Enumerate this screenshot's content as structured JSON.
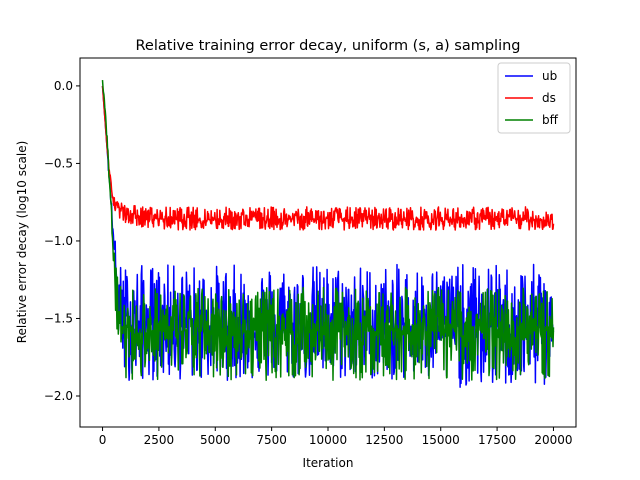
{
  "chart_data": {
    "type": "line",
    "title": "Relative training error decay, uniform (s, a) sampling",
    "xlabel": "Iteration",
    "ylabel": "Relative error decay (log10 scale)",
    "xlim": [
      -1000,
      21000
    ],
    "ylim": [
      -2.2,
      0.18
    ],
    "xticks": [
      0,
      2500,
      5000,
      7500,
      10000,
      12500,
      15000,
      17500,
      20000
    ],
    "xtick_labels": [
      "0",
      "2500",
      "5000",
      "7500",
      "10000",
      "12500",
      "15000",
      "17500",
      "20000"
    ],
    "yticks": [
      0.0,
      -0.5,
      -1.0,
      -1.5,
      -2.0
    ],
    "ytick_labels": [
      "0.0",
      "−0.5",
      "−1.0",
      "−1.5",
      "−2.0"
    ],
    "grid": false,
    "legend_position": "top-right",
    "series": [
      {
        "name": "ub",
        "color": "#0000ff",
        "x": [
          0,
          100,
          200,
          300,
          400,
          500,
          600,
          700,
          800,
          900,
          1000,
          1200,
          1500,
          2000,
          2500,
          3000,
          4000,
          5000,
          6000,
          7000,
          8000,
          9000,
          10000,
          11000,
          12000,
          13000,
          14000,
          15000,
          16000,
          17000,
          18000,
          19000,
          20000
        ],
        "values": [
          0.0,
          -0.2,
          -0.4,
          -0.6,
          -0.8,
          -1.0,
          -1.2,
          -1.35,
          -1.45,
          -1.5,
          -1.52,
          -1.53,
          -1.53,
          -1.54,
          -1.54,
          -1.55,
          -1.55,
          -1.55,
          -1.55,
          -1.55,
          -1.55,
          -1.55,
          -1.55,
          -1.55,
          -1.55,
          -1.55,
          -1.55,
          -1.55,
          -1.55,
          -1.55,
          -1.55,
          -1.55,
          -1.55
        ],
        "band_upper": [
          0.0,
          -0.2,
          -0.4,
          -0.55,
          -0.75,
          -0.9,
          -1.05,
          -1.1,
          -1.15,
          -1.15,
          -1.15,
          -1.15,
          -1.15,
          -1.15,
          -1.15,
          -1.15,
          -1.15,
          -1.15,
          -1.15,
          -1.15,
          -1.15,
          -1.15,
          -1.15,
          -1.15,
          -1.15,
          -1.15,
          -1.15,
          -1.15,
          -1.15,
          -1.15,
          -1.15,
          -1.15,
          -1.15
        ],
        "band_lower": [
          0.0,
          -0.2,
          -0.4,
          -0.65,
          -0.85,
          -1.1,
          -1.4,
          -1.65,
          -1.8,
          -1.85,
          -1.9,
          -1.9,
          -1.9,
          -1.9,
          -1.9,
          -1.9,
          -1.9,
          -1.9,
          -1.9,
          -1.9,
          -1.9,
          -1.9,
          -1.9,
          -1.9,
          -1.9,
          -1.9,
          -1.9,
          -1.95,
          -1.95,
          -1.95,
          -1.95,
          -1.95,
          -1.95
        ]
      },
      {
        "name": "ds",
        "color": "#ff0000",
        "x": [
          0,
          100,
          200,
          300,
          400,
          500,
          600,
          700,
          800,
          1000,
          1500,
          2000,
          3000,
          4000,
          5000,
          6000,
          7000,
          8000,
          9000,
          10000,
          11000,
          12000,
          13000,
          14000,
          15000,
          16000,
          17000,
          18000,
          19000,
          20000
        ],
        "values": [
          0.0,
          -0.2,
          -0.4,
          -0.55,
          -0.68,
          -0.74,
          -0.77,
          -0.79,
          -0.8,
          -0.82,
          -0.84,
          -0.85,
          -0.86,
          -0.86,
          -0.86,
          -0.86,
          -0.86,
          -0.86,
          -0.86,
          -0.86,
          -0.86,
          -0.86,
          -0.86,
          -0.86,
          -0.86,
          -0.86,
          -0.86,
          -0.86,
          -0.86,
          -0.87
        ],
        "band_upper": [
          0.0,
          -0.2,
          -0.4,
          -0.52,
          -0.64,
          -0.7,
          -0.72,
          -0.74,
          -0.75,
          -0.76,
          -0.77,
          -0.78,
          -0.78,
          -0.78,
          -0.78,
          -0.78,
          -0.78,
          -0.78,
          -0.78,
          -0.78,
          -0.78,
          -0.78,
          -0.78,
          -0.78,
          -0.78,
          -0.78,
          -0.78,
          -0.78,
          -0.78,
          -0.8
        ],
        "band_lower": [
          0.0,
          -0.2,
          -0.4,
          -0.58,
          -0.72,
          -0.78,
          -0.82,
          -0.84,
          -0.86,
          -0.88,
          -0.9,
          -0.92,
          -0.93,
          -0.93,
          -0.93,
          -0.93,
          -0.93,
          -0.93,
          -0.93,
          -0.93,
          -0.93,
          -0.93,
          -0.93,
          -0.93,
          -0.93,
          -0.93,
          -0.93,
          -0.93,
          -0.93,
          -0.93
        ]
      },
      {
        "name": "bff",
        "color": "#008000",
        "x": [
          0,
          100,
          200,
          300,
          400,
          500,
          600,
          700,
          800,
          1000,
          1500,
          2000,
          3000,
          4000,
          5000,
          6000,
          7000,
          8000,
          9000,
          10000,
          11000,
          12000,
          13000,
          14000,
          15000,
          16000,
          17000,
          18000,
          19000,
          20000
        ],
        "values": [
          0.05,
          -0.15,
          -0.35,
          -0.6,
          -0.85,
          -1.1,
          -1.35,
          -1.5,
          -1.55,
          -1.57,
          -1.58,
          -1.58,
          -1.58,
          -1.58,
          -1.58,
          -1.58,
          -1.58,
          -1.58,
          -1.58,
          -1.58,
          -1.58,
          -1.58,
          -1.58,
          -1.58,
          -1.58,
          -1.58,
          -1.58,
          -1.58,
          -1.58,
          -1.58
        ],
        "band_upper": [
          0.08,
          -0.1,
          -0.3,
          -0.55,
          -0.8,
          -1.0,
          -1.15,
          -1.25,
          -1.28,
          -1.3,
          -1.3,
          -1.3,
          -1.3,
          -1.3,
          -1.3,
          -1.28,
          -1.3,
          -1.3,
          -1.3,
          -1.3,
          -1.3,
          -1.3,
          -1.3,
          -1.3,
          -1.3,
          -1.3,
          -1.3,
          -1.3,
          -1.3,
          -1.3
        ],
        "band_lower": [
          0.0,
          -0.2,
          -0.4,
          -0.65,
          -0.9,
          -1.2,
          -1.55,
          -1.75,
          -1.85,
          -1.88,
          -1.9,
          -1.9,
          -1.9,
          -1.9,
          -1.9,
          -1.9,
          -1.9,
          -1.9,
          -1.9,
          -1.9,
          -1.9,
          -1.9,
          -1.9,
          -1.9,
          -1.9,
          -1.9,
          -1.9,
          -1.9,
          -1.9,
          -1.9
        ]
      }
    ]
  }
}
